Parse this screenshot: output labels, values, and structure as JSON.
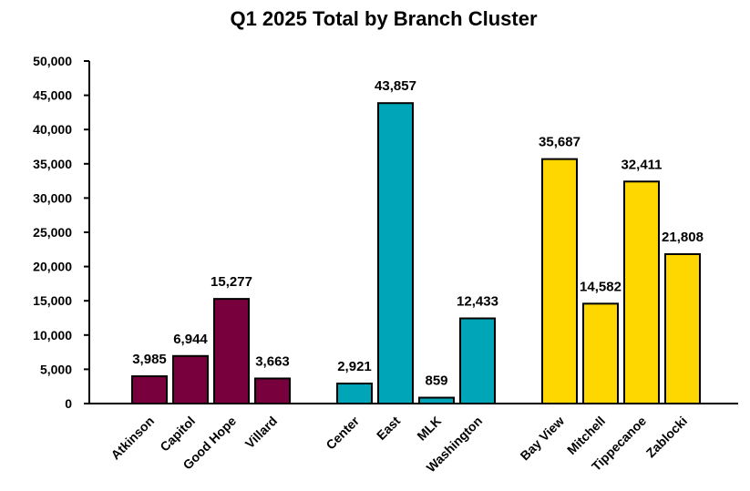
{
  "chart_data": {
    "type": "bar",
    "title": "Q1 2025 Total by Branch Cluster",
    "xlabel": "",
    "ylabel": "",
    "ylim": [
      0,
      50000
    ],
    "yticks": [
      "0",
      "5,000",
      "10,000",
      "15,000",
      "20,000",
      "25,000",
      "30,000",
      "35,000",
      "40,000",
      "45,000",
      "50,000"
    ],
    "grid": false,
    "legend": "none",
    "clusters": [
      {
        "color": "#77003D",
        "categories": [
          "Atkinson",
          "Capitol",
          "Good Hope",
          "Villard"
        ],
        "values": [
          3985,
          6944,
          15277,
          3663
        ],
        "labels": [
          "3,985",
          "6,944",
          "15,277",
          "3,663"
        ]
      },
      {
        "color": "#00A5B8",
        "categories": [
          "Center",
          "East",
          "MLK",
          "Washington"
        ],
        "values": [
          2921,
          43857,
          859,
          12433
        ],
        "labels": [
          "2,921",
          "43,857",
          "859",
          "12,433"
        ]
      },
      {
        "color": "#FFD700",
        "categories": [
          "Bay View",
          "Mitchell",
          "Tippecanoe",
          "Zablocki"
        ],
        "values": [
          35687,
          14582,
          32411,
          21808
        ],
        "labels": [
          "35,687",
          "14,582",
          "32,411",
          "21,808"
        ]
      }
    ]
  }
}
